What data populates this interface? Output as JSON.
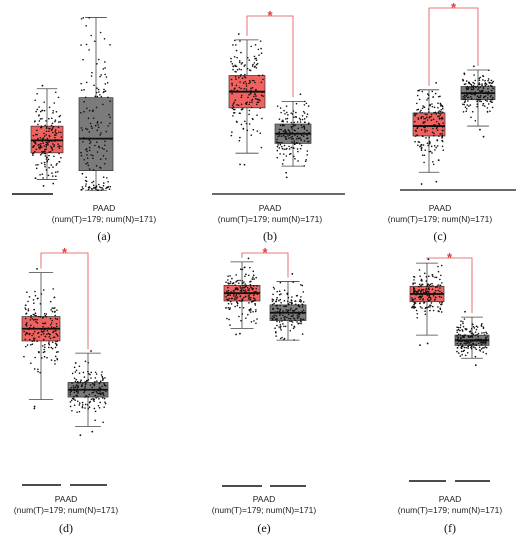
{
  "figure": {
    "panel_labels": [
      "(a)",
      "(b)",
      "(c)",
      "(d)",
      "(e)",
      "(f)"
    ],
    "category_line1": "PAAD",
    "category_line2": "(num(T)=179; num(N)=171)",
    "significance_marker": "*",
    "colors": {
      "tumor": "#f0625f",
      "normal": "#7b7b7b",
      "bracket": "#e05050",
      "points": "#111111"
    }
  },
  "chart_data": [
    {
      "type": "box",
      "panel": "(a)",
      "n": {
        "T": 179,
        "N": 171
      },
      "boxes": [
        {
          "group": "T",
          "color": "#f0625f",
          "whisker_low": 0.07,
          "q1": 0.22,
          "median": 0.29,
          "q3": 0.37,
          "whisker_high": 0.58
        },
        {
          "group": "N",
          "color": "#7b7b7b",
          "whisker_low": 0.01,
          "q1": 0.12,
          "median": 0.3,
          "q3": 0.53,
          "whisker_high": 0.98
        }
      ],
      "significant": false,
      "ylim": [
        0,
        1
      ],
      "grid": false
    },
    {
      "type": "box",
      "panel": "(b)",
      "n": {
        "T": 179,
        "N": 171
      },
      "boxes": [
        {
          "group": "T",
          "color": "#f0625f",
          "whisker_low": 0.52,
          "q1": 0.66,
          "median": 0.71,
          "q3": 0.76,
          "whisker_high": 0.87
        },
        {
          "group": "N",
          "color": "#7b7b7b",
          "whisker_low": 0.48,
          "q1": 0.55,
          "median": 0.58,
          "q3": 0.61,
          "whisker_high": 0.68
        }
      ],
      "significant": true,
      "ylim": [
        0,
        1
      ],
      "grid": false
    },
    {
      "type": "box",
      "panel": "(c)",
      "n": {
        "T": 179,
        "N": 171
      },
      "boxes": [
        {
          "group": "T",
          "color": "#f0625f",
          "whisker_low": 0.48,
          "q1": 0.59,
          "median": 0.62,
          "q3": 0.66,
          "whisker_high": 0.73
        },
        {
          "group": "N",
          "color": "#7b7b7b",
          "whisker_low": 0.62,
          "q1": 0.7,
          "median": 0.72,
          "q3": 0.74,
          "whisker_high": 0.79
        }
      ],
      "significant": true,
      "ylim": [
        0,
        1
      ],
      "grid": false
    },
    {
      "type": "box",
      "panel": "(d)",
      "n": {
        "T": 179,
        "N": 171
      },
      "boxes": [
        {
          "group": "T",
          "color": "#f0625f",
          "whisker_low": 0.42,
          "q1": 0.66,
          "median": 0.71,
          "q3": 0.76,
          "whisker_high": 0.94
        },
        {
          "group": "N",
          "color": "#7b7b7b",
          "whisker_low": 0.31,
          "q1": 0.43,
          "median": 0.46,
          "q3": 0.49,
          "whisker_high": 0.61
        }
      ],
      "significant": true,
      "ylim": [
        0,
        1
      ],
      "grid": false
    },
    {
      "type": "box",
      "panel": "(e)",
      "n": {
        "T": 179,
        "N": 171
      },
      "boxes": [
        {
          "group": "T",
          "color": "#f0625f",
          "whisker_low": 0.78,
          "q1": 0.85,
          "median": 0.87,
          "q3": 0.89,
          "whisker_high": 0.95
        },
        {
          "group": "N",
          "color": "#7b7b7b",
          "whisker_low": 0.75,
          "q1": 0.8,
          "median": 0.82,
          "q3": 0.84,
          "whisker_high": 0.9
        }
      ],
      "significant": true,
      "ylim": [
        0,
        1
      ],
      "grid": false
    },
    {
      "type": "box",
      "panel": "(f)",
      "n": {
        "T": 179,
        "N": 171
      },
      "boxes": [
        {
          "group": "T",
          "color": "#f0625f",
          "whisker_low": 0.72,
          "q1": 0.85,
          "median": 0.88,
          "q3": 0.91,
          "whisker_high": 1.0
        },
        {
          "group": "N",
          "color": "#7b7b7b",
          "whisker_low": 0.63,
          "q1": 0.68,
          "median": 0.7,
          "q3": 0.72,
          "whisker_high": 0.79
        }
      ],
      "significant": true,
      "ylim": [
        0,
        1
      ],
      "grid": false
    }
  ]
}
